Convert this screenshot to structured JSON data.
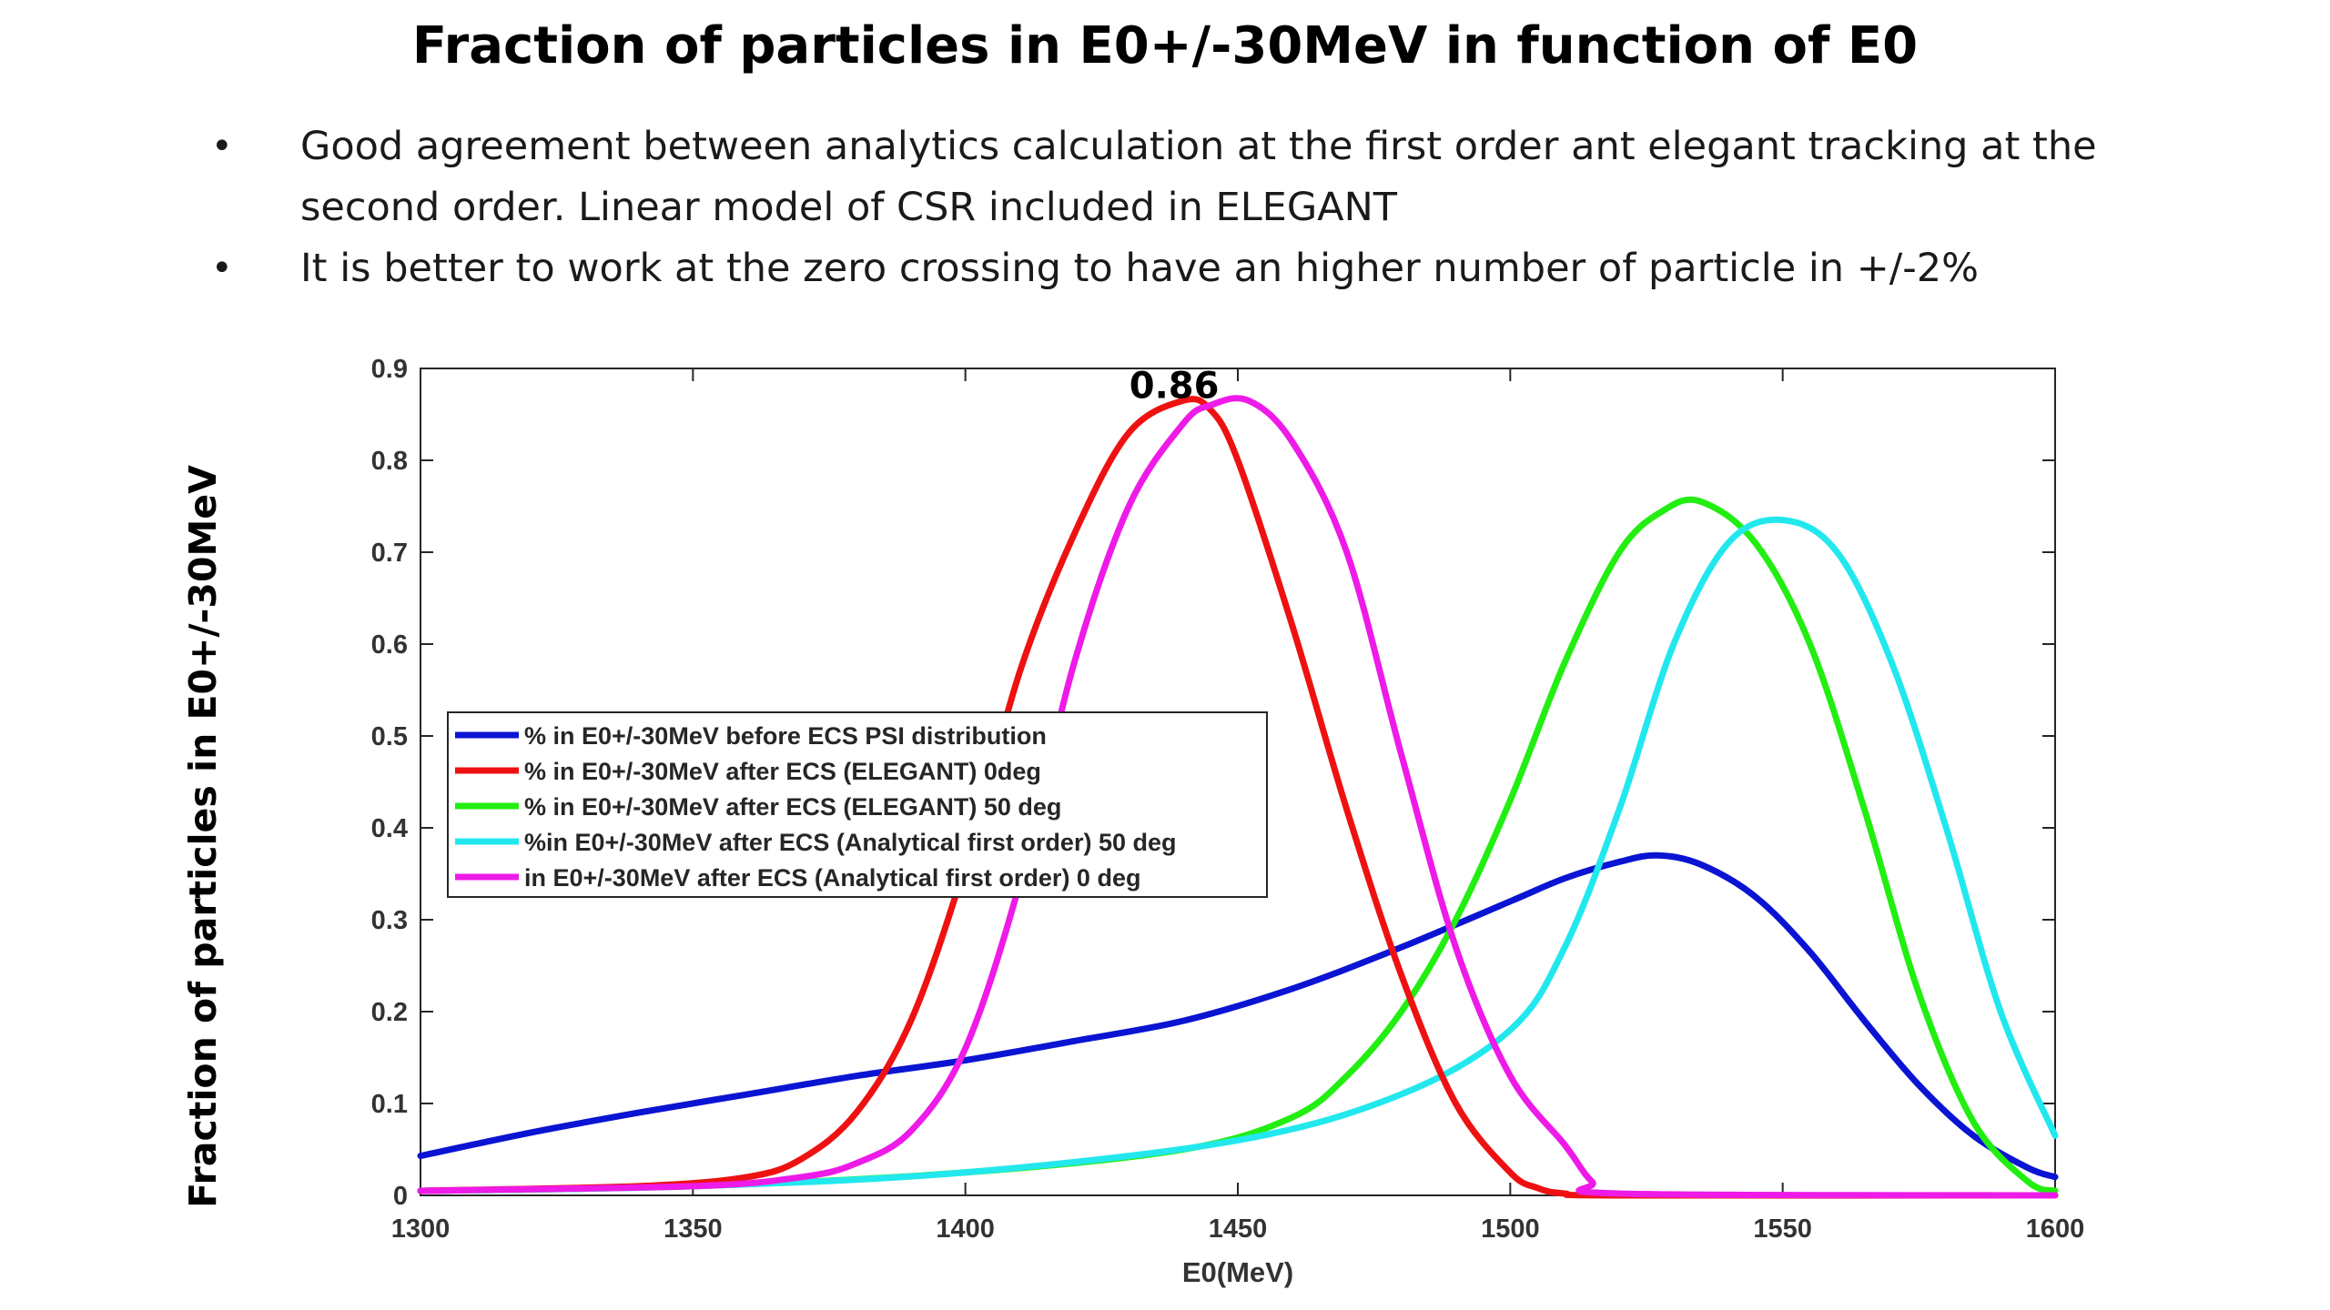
{
  "slide": {
    "title": "Fraction of particles in E0+/-30MeV in function of E0",
    "bullets": [
      "Good agreement between analytics calculation at the first order ant elegant tracking at the second order. Linear model of CSR included in ELEGANT",
      "It is better to work at the zero crossing to have an  higher  number of particle  in +/-2%"
    ]
  },
  "chart_data": {
    "type": "line",
    "title": "",
    "xlabel": "E0(MeV)",
    "ylabel": "Fraction of particles in E0+/-30MeV",
    "xlim": [
      1300,
      1600
    ],
    "ylim": [
      0,
      0.9
    ],
    "xticks": [
      1300,
      1350,
      1400,
      1450,
      1500,
      1550,
      1600
    ],
    "yticks": [
      0,
      0.1,
      0.2,
      0.3,
      0.4,
      0.5,
      0.6,
      0.7,
      0.8,
      0.9
    ],
    "xtick_labels": [
      "1300",
      "1350",
      "1400",
      "1450",
      "1500",
      "1550",
      "1600"
    ],
    "ytick_labels": [
      "0",
      "0.1",
      "0.2",
      "0.3",
      "0.4",
      "0.5",
      "0.6",
      "0.7",
      "0.8",
      "0.9"
    ],
    "grid": false,
    "legend_position": "center-left",
    "annotations": [
      {
        "text": "0.86",
        "x": 1440,
        "y": 0.86
      }
    ],
    "series": [
      {
        "name": "% in E0+/-30MeV before ECS PSI distribution",
        "color": "#0a14d2",
        "x": [
          1300,
          1320,
          1340,
          1360,
          1380,
          1400,
          1420,
          1440,
          1460,
          1480,
          1500,
          1510,
          1520,
          1527,
          1535,
          1545,
          1555,
          1565,
          1575,
          1585,
          1595,
          1600
        ],
        "y": [
          0.043,
          0.068,
          0.09,
          0.11,
          0.13,
          0.147,
          0.168,
          0.19,
          0.225,
          0.27,
          0.32,
          0.345,
          0.363,
          0.37,
          0.36,
          0.325,
          0.265,
          0.19,
          0.12,
          0.065,
          0.03,
          0.02
        ]
      },
      {
        "name": "% in E0+/-30MeV after ECS (ELEGANT) 0deg",
        "color": "#ee1111",
        "x": [
          1300,
          1340,
          1360,
          1370,
          1380,
          1390,
          1400,
          1410,
          1420,
          1430,
          1440,
          1445,
          1450,
          1460,
          1470,
          1480,
          1490,
          1500,
          1505,
          1510,
          1520,
          1600
        ],
        "y": [
          0.005,
          0.01,
          0.02,
          0.04,
          0.09,
          0.19,
          0.36,
          0.57,
          0.72,
          0.83,
          0.865,
          0.855,
          0.8,
          0.62,
          0.42,
          0.24,
          0.1,
          0.025,
          0.008,
          0.002,
          0.0,
          0.0
        ]
      },
      {
        "name": "% in E0+/-30MeV after ECS (ELEGANT) 50 deg",
        "color": "#22ee11",
        "x": [
          1300,
          1350,
          1400,
          1440,
          1460,
          1470,
          1480,
          1490,
          1500,
          1510,
          1520,
          1528,
          1535,
          1545,
          1555,
          1565,
          1575,
          1585,
          1595,
          1600
        ],
        "y": [
          0.005,
          0.01,
          0.025,
          0.05,
          0.085,
          0.13,
          0.2,
          0.3,
          0.43,
          0.58,
          0.7,
          0.745,
          0.755,
          0.71,
          0.6,
          0.42,
          0.22,
          0.08,
          0.015,
          0.005
        ]
      },
      {
        "name": "%in E0+/-30MeV after ECS (Analytical first order) 50 deg",
        "color": "#22e8ee",
        "x": [
          1300,
          1350,
          1400,
          1450,
          1480,
          1500,
          1510,
          1520,
          1530,
          1540,
          1550,
          1560,
          1570,
          1580,
          1590,
          1600
        ],
        "y": [
          0.005,
          0.01,
          0.025,
          0.06,
          0.11,
          0.18,
          0.27,
          0.42,
          0.6,
          0.71,
          0.735,
          0.7,
          0.58,
          0.4,
          0.2,
          0.065
        ]
      },
      {
        "name": "in E0+/-30MeV after ECS (Analytical first order) 0 deg",
        "color": "#ee1ae8",
        "x": [
          1300,
          1350,
          1370,
          1380,
          1390,
          1400,
          1410,
          1420,
          1430,
          1440,
          1445,
          1452,
          1460,
          1470,
          1480,
          1490,
          1500,
          1510,
          1515,
          1520,
          1600
        ],
        "y": [
          0.005,
          0.01,
          0.02,
          0.035,
          0.07,
          0.16,
          0.34,
          0.58,
          0.75,
          0.84,
          0.86,
          0.865,
          0.82,
          0.7,
          0.48,
          0.27,
          0.13,
          0.055,
          0.015,
          0.002,
          0.0
        ]
      }
    ]
  }
}
